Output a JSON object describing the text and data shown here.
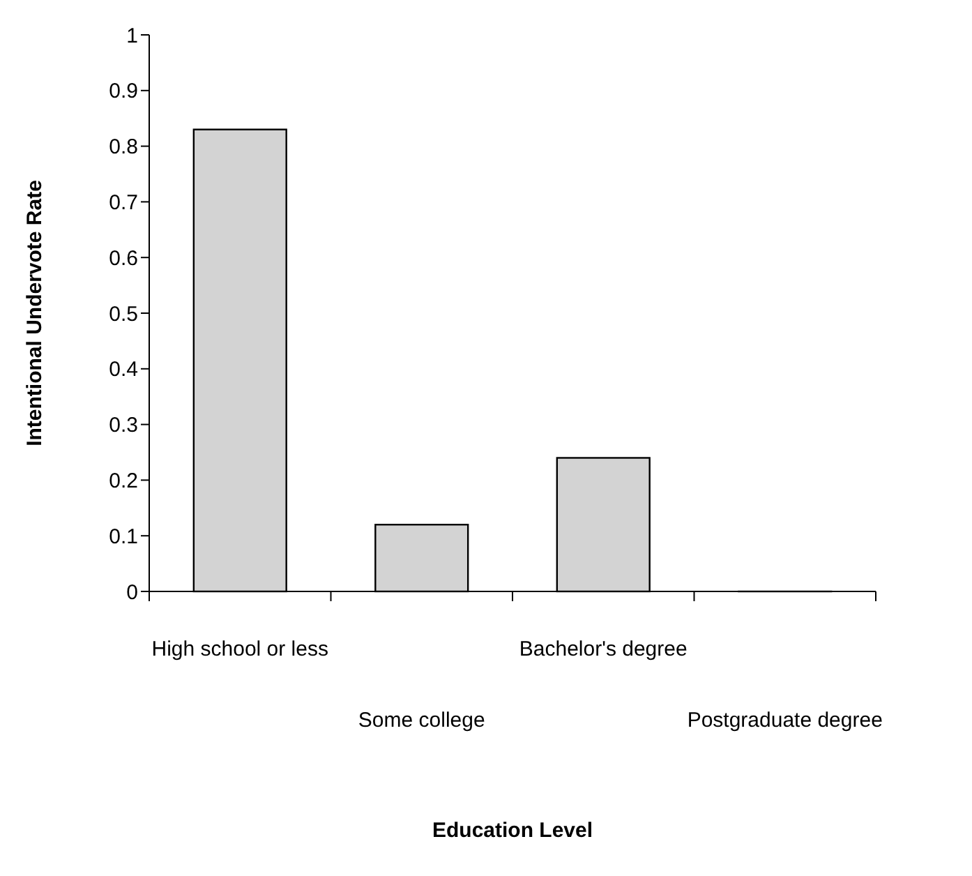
{
  "chart_data": {
    "type": "bar",
    "categories": [
      "High school or less",
      "Some college",
      "Bachelor's degree",
      "Postgraduate degree"
    ],
    "values": [
      0.83,
      0.12,
      0.24,
      0
    ],
    "color": "#d3d3d3",
    "ylim": [
      0,
      1
    ],
    "yticks": [
      0,
      0.1,
      0.2,
      0.3,
      0.4,
      0.5,
      0.6,
      0.7,
      0.8,
      0.9,
      1
    ],
    "xlabel": "Education Level",
    "ylabel": "Intentional Undervote Rate"
  }
}
